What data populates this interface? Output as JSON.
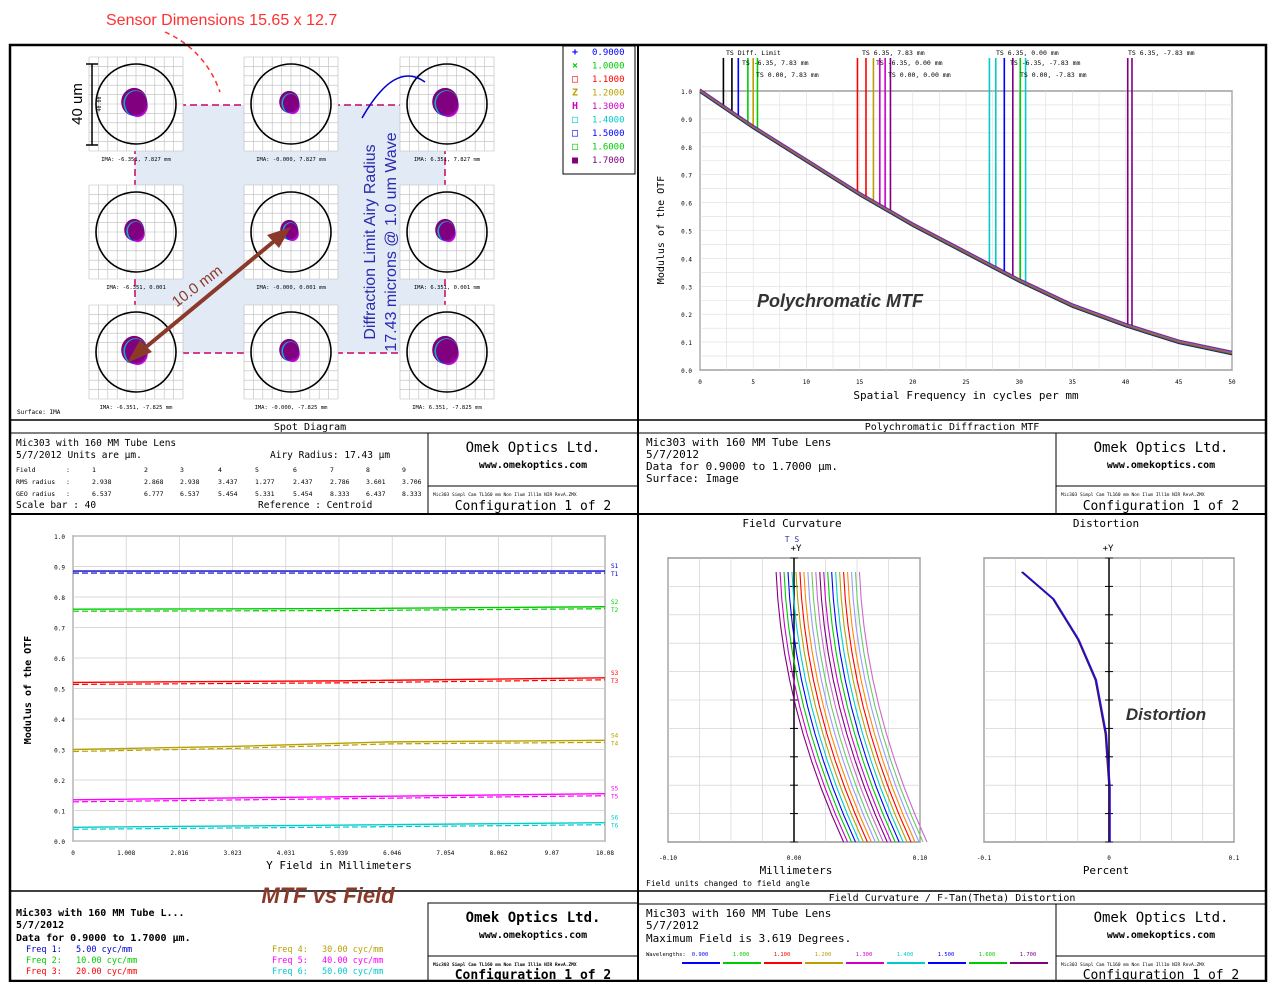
{
  "top_annotation": "Sensor Dimensions 15.65 x 12.7",
  "spot": {
    "scale_label": "40 um",
    "scale_small": "40.00",
    "airy_text_line1": "Diffraction Limit Airy Radius",
    "airy_text_line2": "17.43 microns @ 1.0 um Wave",
    "diag_label": "10.0 mm",
    "surface_label": "Surface: IMA",
    "cells": [
      {
        "ima": "IMA: -6.351, 7.827 mm"
      },
      {
        "ima": "IMA: -0.000, 7.827 mm"
      },
      {
        "ima": "IMA: 6.351, 7.827 mm"
      },
      {
        "ima": "IMA: -6.351, 0.001"
      },
      {
        "ima": "IMA: -0.000, 0.001 mm"
      },
      {
        "ima": "IMA: 6.351, 0.001 mm"
      },
      {
        "ima": "IMA: -6.351, -7.825 mm"
      },
      {
        "ima": "IMA: -0.000, -7.825 mm"
      },
      {
        "ima": "IMA: 6.351, -7.825 mm"
      }
    ],
    "footer_title": "Spot Diagram",
    "info_line1": "Mic303 with  160 MM Tube Lens",
    "info_line2": "5/7/2012  Units are µm.",
    "airy_radius": "Airy Radius: 17.43 µm",
    "field_row": [
      "Field",
      ":",
      "1",
      "2",
      "3",
      "4",
      "5",
      "6",
      "7",
      "8",
      "9"
    ],
    "rms_row": [
      "RMS radius",
      ":",
      "2.938",
      "2.868",
      "2.938",
      "3.437",
      "1.277",
      "2.437",
      "2.786",
      "3.601",
      "3.706"
    ],
    "geo_row": [
      "GEO radius",
      ":",
      "6.537",
      "6.777",
      "6.537",
      "5.454",
      "5.331",
      "5.454",
      "8.333",
      "6.437",
      "8.333"
    ],
    "scale_bar": "Scale bar  : 40",
    "reference": "Reference  : Centroid"
  },
  "legend": {
    "items": [
      {
        "sym": "+",
        "value": "0.9000",
        "color": "#0000ff"
      },
      {
        "sym": "×",
        "value": "1.0000",
        "color": "#00cc00"
      },
      {
        "sym": "□",
        "value": "1.1000",
        "color": "#ff0000"
      },
      {
        "sym": "Z",
        "value": "1.2000",
        "color": "#b8a000"
      },
      {
        "sym": "H",
        "value": "1.3000",
        "color": "#cc00cc"
      },
      {
        "sym": "□",
        "value": "1.4000",
        "color": "#00cccc"
      },
      {
        "sym": "□",
        "value": "1.5000",
        "color": "#0000ff"
      },
      {
        "sym": "□",
        "value": "1.6000",
        "color": "#00cc00"
      },
      {
        "sym": "■",
        "value": "1.7000",
        "color": "#800080"
      }
    ]
  },
  "company": {
    "name": "Omek Optics Ltd.",
    "url": "www.omekoptics.com",
    "config": "Configuration 1 of 2",
    "path_small": "Mic303 Simpl Cam TL160 mm Non Ilum Ill1m NIR RevA.ZMX"
  },
  "chart_data": [
    {
      "type": "line",
      "title": "Polychromatic Diffraction MTF",
      "xlabel": "Spatial Frequency in cycles per mm",
      "ylabel": "Modulus of the OTF",
      "overlay_label": "Polychromatic MTF",
      "xlim": [
        0,
        50
      ],
      "ylim": [
        0,
        1.0
      ],
      "xticks": [
        "0",
        "5",
        "10",
        "15",
        "20",
        "25",
        "30",
        "35",
        "40",
        "45",
        "50"
      ],
      "yticks": [
        "0.0",
        "0.1",
        "0.2",
        "0.3",
        "0.4",
        "0.5",
        "0.6",
        "0.7",
        "0.8",
        "0.9",
        "1.0"
      ],
      "series": [
        {
          "name": "TS Diff. Limit",
          "x": [
            0,
            5,
            10,
            15,
            20,
            25,
            30,
            35,
            40,
            45,
            50
          ],
          "values": [
            1.0,
            0.87,
            0.75,
            0.63,
            0.52,
            0.42,
            0.32,
            0.23,
            0.16,
            0.1,
            0.06
          ]
        }
      ],
      "top_labels": [
        {
          "text": "TS Diff. Limit",
          "color": "#000000"
        },
        {
          "text": "TS -6.35, 7.83 mm",
          "color": "#0000ff"
        },
        {
          "text": "TS 0.00, 7.83 mm",
          "color": "#00cc00"
        },
        {
          "text": "TS 6.35, 7.83 mm",
          "color": "#ff0000"
        },
        {
          "text": "TS -6.35, 0.00 mm",
          "color": "#b8a000"
        },
        {
          "text": "TS 0.00, 0.00 mm",
          "color": "#cc00cc"
        },
        {
          "text": "TS 6.35, 0.00 mm",
          "color": "#00cccc"
        },
        {
          "text": "TS -6.35, -7.83 mm",
          "color": "#0000ff"
        },
        {
          "text": "TS 0.00, -7.83 mm",
          "color": "#00cc00"
        },
        {
          "text": "TS 6.35, -7.83 mm",
          "color": "#800080"
        }
      ],
      "marker_x": [
        2.2,
        3.0,
        3.6,
        4.5,
        5.0,
        5.4,
        14.8,
        15.6,
        16.3,
        16.9,
        17.4,
        17.9,
        27.2,
        27.8,
        28.6,
        29.4,
        30.1,
        30.6,
        40.2,
        40.6
      ]
    },
    {
      "type": "line",
      "title": "MTF vs Field",
      "xlabel": "Y Field in Millimeters",
      "ylabel": "Modulus of the OTF",
      "overlay_label": "MTF vs Field",
      "xlim": [
        0,
        10.08
      ],
      "ylim": [
        0,
        1.0
      ],
      "xticks": [
        "0",
        "1.008",
        "2.016",
        "3.023",
        "4.031",
        "5.039",
        "6.046",
        "7.054",
        "8.062",
        "9.07",
        "10.08"
      ],
      "yticks": [
        "0.0",
        "0.1",
        "0.2",
        "0.3",
        "0.4",
        "0.5",
        "0.6",
        "0.7",
        "0.8",
        "0.9",
        "1.0"
      ],
      "series": [
        {
          "name": "S1/T1",
          "color": "#0000cc",
          "x": [
            0,
            10.08
          ],
          "values": [
            0.885,
            0.885
          ],
          "label_s": "S1",
          "label_t": "T1"
        },
        {
          "name": "S2/T2",
          "color": "#00cc00",
          "x": [
            0,
            5.0,
            10.08
          ],
          "values": [
            0.76,
            0.762,
            0.768
          ],
          "label_s": "S2",
          "label_t": "T2"
        },
        {
          "name": "S3/T3",
          "color": "#ff0000",
          "x": [
            0,
            5.0,
            10.08
          ],
          "values": [
            0.52,
            0.525,
            0.535
          ],
          "label_s": "S3",
          "label_t": "T3"
        },
        {
          "name": "S4/T4",
          "color": "#b8a000",
          "x": [
            0,
            3.0,
            6.0,
            10.08
          ],
          "values": [
            0.3,
            0.31,
            0.325,
            0.33
          ],
          "label_s": "S4",
          "label_t": "T4"
        },
        {
          "name": "S5/T5",
          "color": "#ff00ff",
          "x": [
            0,
            5.0,
            10.08
          ],
          "values": [
            0.135,
            0.145,
            0.155
          ],
          "label_s": "S5",
          "label_t": "T5"
        },
        {
          "name": "S6/T6",
          "color": "#00cccc",
          "x": [
            0,
            5.0,
            10.08
          ],
          "values": [
            0.045,
            0.052,
            0.06
          ],
          "label_s": "S6",
          "label_t": "T6"
        }
      ],
      "info_line1": "Mic303 with  160 MM Tube L...",
      "info_line2": "5/7/2012",
      "info_line3": "Data for  0.9000 to 1.7000 µm.",
      "freqs": [
        {
          "label": "Freq 1:",
          "value": "5.00 cyc/mm",
          "color": "#0000cc"
        },
        {
          "label": "Freq 2:",
          "value": "10.00 cyc/mm",
          "color": "#00cc00"
        },
        {
          "label": "Freq 3:",
          "value": "20.00 cyc/mm",
          "color": "#ff0000"
        },
        {
          "label": "Freq 4:",
          "value": "30.00 cyc/mm",
          "color": "#b8a000"
        },
        {
          "label": "Freq 5:",
          "value": "40.00 cyc/mm",
          "color": "#ff00ff"
        },
        {
          "label": "Freq 6:",
          "value": "50.00 cyc/mm",
          "color": "#00cccc"
        }
      ]
    },
    {
      "type": "line",
      "title": "Field Curvature",
      "xlabel": "Millimeters",
      "xlim": [
        -0.1,
        0.1
      ],
      "xticks": [
        "-0.10",
        "0.00",
        "0.10"
      ],
      "axis_top": "+Y",
      "tick_marker": "T S",
      "note": "Field units changed to field angle"
    },
    {
      "type": "line",
      "title": "Distortion",
      "xlabel": "Percent",
      "overlay_label": "Distortion",
      "xlim": [
        -0.1,
        0.1
      ],
      "xticks": [
        "-0.1",
        "0",
        "0.1"
      ],
      "axis_top": "+Y",
      "series": [
        {
          "name": "Distortion",
          "x": [
            0.0,
            0.0,
            -0.003,
            -0.011,
            -0.025,
            -0.045,
            -0.07
          ],
          "values": [
            0.0,
            0.2,
            0.4,
            0.6,
            0.75,
            0.9,
            1.0
          ]
        }
      ]
    }
  ],
  "mtf_panel": {
    "footer_title": "Polychromatic Diffraction MTF",
    "info_line1": "Mic303 with  160 MM Tube Lens",
    "info_line2": "5/7/2012",
    "info_line3": "Data for 0.9000 to 1.7000 µm.",
    "info_line4": "Surface: Image"
  },
  "fc_panel": {
    "footer_title": "Field Curvature / F-Tan(Theta) Distortion",
    "info_line1": "Mic303 with  160 MM Tube Lens",
    "info_line2": "5/7/2012",
    "info_line3": "Maximum Field is 3.619 Degrees.",
    "wavelength_label": "Wavelengths:",
    "wavelengths": [
      "0.900",
      "1.000",
      "1.100",
      "1.200",
      "1.300",
      "1.400",
      "1.500",
      "1.600",
      "1.700"
    ]
  }
}
